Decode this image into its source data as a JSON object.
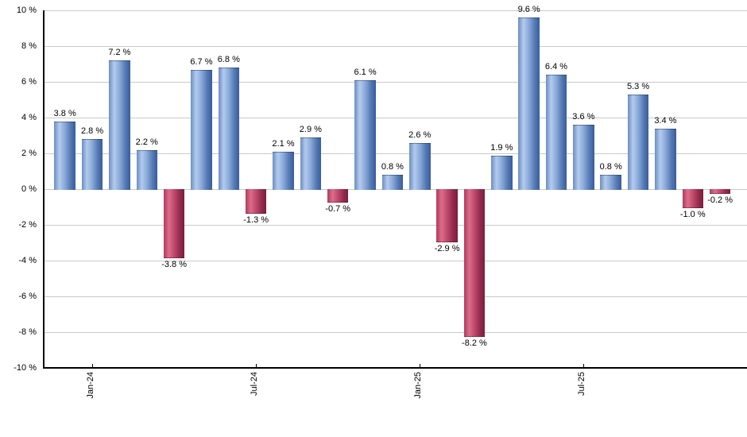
{
  "chart_data": {
    "type": "bar",
    "title": "",
    "xlabel": "",
    "ylabel": "",
    "ylim": [
      -10,
      10
    ],
    "grid": true,
    "legend_position": "none",
    "values": [
      3.8,
      2.8,
      7.2,
      2.2,
      -3.8,
      6.7,
      6.8,
      -1.3,
      2.1,
      2.9,
      -0.7,
      6.1,
      0.8,
      2.6,
      -2.9,
      -8.2,
      1.9,
      9.6,
      6.4,
      3.6,
      0.8,
      5.3,
      3.4,
      -1.0,
      -0.2
    ],
    "bar_labels": [
      "3.8 %",
      "2.8 %",
      "7.2 %",
      "2.2 %",
      "-3.8 %",
      "6.7 %",
      "6.8 %",
      "-1.3 %",
      "2.1 %",
      "2.9 %",
      "-0.7 %",
      "6.1 %",
      "0.8 %",
      "2.6 %",
      "-2.9 %",
      "-8.2 %",
      "1.9 %",
      "9.6 %",
      "6.4 %",
      "3.6 %",
      "0.8 %",
      "5.3 %",
      "3.4 %",
      "-1.0 %",
      "-0.2 %"
    ],
    "x_ticks": [
      {
        "bar_index": 1,
        "label": "Jan-24"
      },
      {
        "bar_index": 7,
        "label": "Jul-24"
      },
      {
        "bar_index": 13,
        "label": "Jan-25"
      },
      {
        "bar_index": 19,
        "label": "Jul-25"
      }
    ],
    "y_tick_values": [
      10,
      8,
      6,
      4,
      2,
      0,
      -2,
      -4,
      -6,
      -8,
      -10
    ],
    "y_tick_labels": [
      "10 %",
      "8 %",
      "6 %",
      "4 %",
      "2 %",
      "0 %",
      "-2 %",
      "-4 %",
      "-6 %",
      "-8 %",
      "-10 %"
    ]
  },
  "colors": {
    "background": "#ffffff",
    "gridline": "#c9c9c9",
    "axis": "#000000",
    "label_text": "#000000",
    "positive_gradient": [
      "#6c8dc2",
      "#b3cbee",
      "#8aa9d8",
      "#5378b3",
      "#3a5d9c"
    ],
    "negative_gradient": [
      "#af3a60",
      "#dc6d89",
      "#c04a6c",
      "#932a4e",
      "#7c1e3e"
    ],
    "gradient_stops_pct": [
      0,
      25,
      50,
      78,
      100
    ]
  }
}
